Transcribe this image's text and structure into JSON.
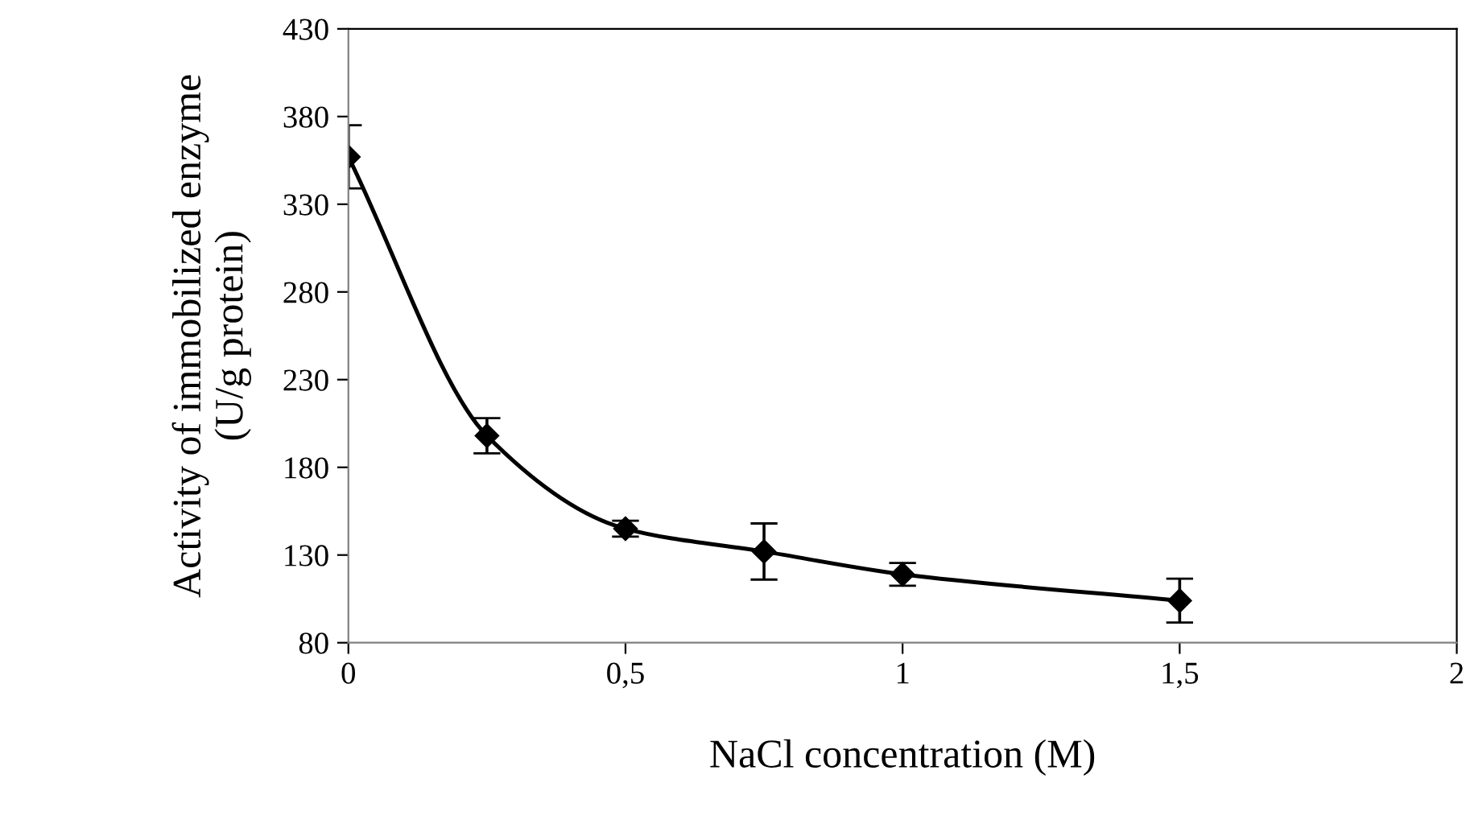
{
  "chart_data": {
    "type": "line",
    "xlabel": "NaCl concentration (M)",
    "ylabel": "Activity of immobilized enzyme\n(U/g protein)",
    "x": [
      0,
      0.25,
      0.5,
      0.75,
      1,
      1.5
    ],
    "series": [
      {
        "color": "#000000",
        "values": [
          357,
          198,
          145,
          132,
          119,
          104
        ],
        "errors": [
          18,
          10,
          4.5,
          16,
          6.5,
          12.5
        ]
      }
    ],
    "xlim": [
      0,
      2
    ],
    "xticks": [
      0,
      {
        "value": 0.5,
        "label": "0,5"
      },
      1,
      {
        "value": 1.5,
        "label": "1,5"
      },
      2
    ],
    "ylim": [
      80,
      430
    ],
    "yticks": [
      80,
      130,
      180,
      230,
      280,
      330,
      380,
      430
    ],
    "marker": "diamond",
    "line_style": "solid",
    "grid": false
  }
}
